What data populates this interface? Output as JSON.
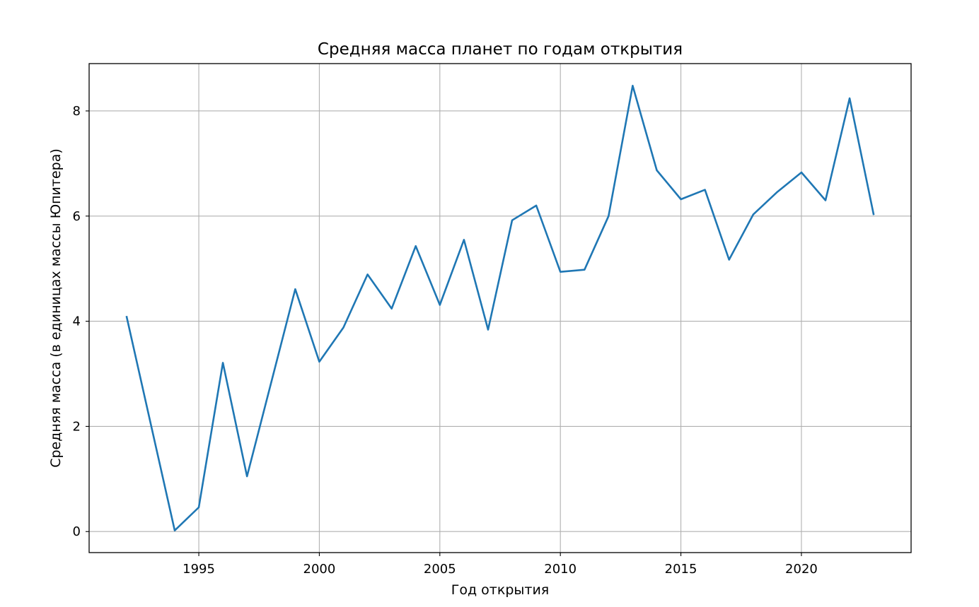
{
  "chart_data": {
    "type": "line",
    "title": "Средняя масса планет по годам открытия",
    "xlabel": "Год открытия",
    "ylabel": "Средняя масса (в единицах массы Юпитера)",
    "xlim": [
      1990.45,
      2024.55
    ],
    "ylim": [
      -0.4,
      8.9
    ],
    "xticks": [
      1995,
      2000,
      2005,
      2010,
      2015,
      2020
    ],
    "yticks": [
      0,
      2,
      4,
      6,
      8
    ],
    "grid": true,
    "series": [
      {
        "color": "#1f77b4",
        "x": [
          1992,
          1994,
          1995,
          1996,
          1997,
          1999,
          2000,
          2001,
          2002,
          2003,
          2004,
          2005,
          2006,
          2007,
          2008,
          2009,
          2010,
          2011,
          2012,
          2013,
          2014,
          2015,
          2016,
          2017,
          2018,
          2019,
          2020,
          2021,
          2022,
          2023
        ],
        "y": [
          4.1,
          0.02,
          0.46,
          3.21,
          1.05,
          4.61,
          3.23,
          3.88,
          4.89,
          4.24,
          5.43,
          4.31,
          5.55,
          3.84,
          5.92,
          6.2,
          4.94,
          4.98,
          6.0,
          8.48,
          6.87,
          6.32,
          6.5,
          5.17,
          6.03,
          6.46,
          6.83,
          6.3,
          8.24,
          6.02
        ]
      }
    ]
  }
}
